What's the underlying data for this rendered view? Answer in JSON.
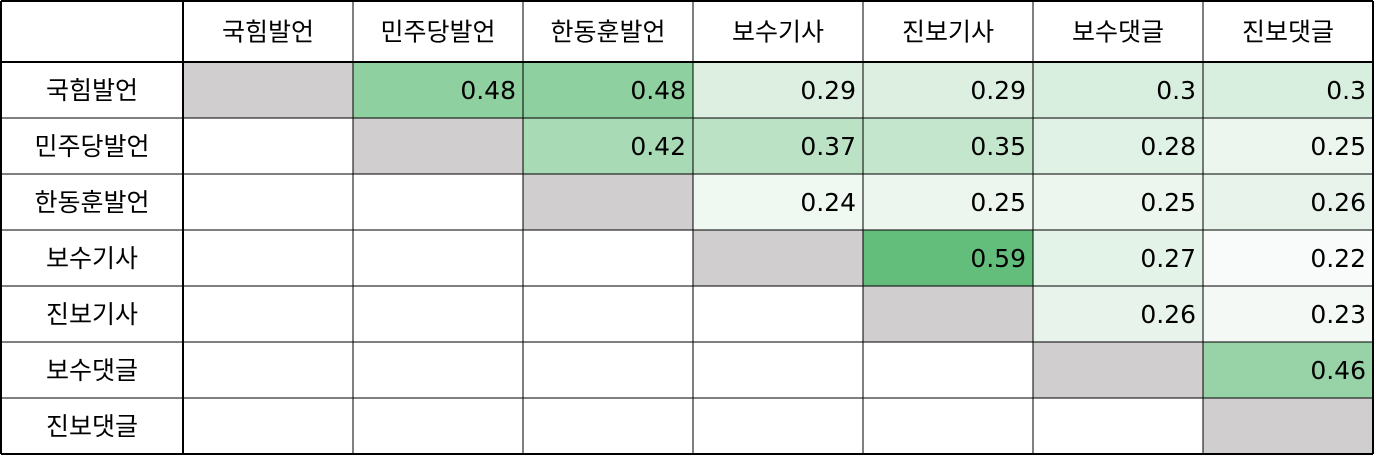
{
  "chart_data": {
    "type": "heatmap",
    "columns": [
      "국힘발언",
      "민주당발언",
      "한동훈발언",
      "보수기사",
      "진보기사",
      "보수댓글",
      "진보댓글"
    ],
    "rows": [
      "국힘발언",
      "민주당발언",
      "한동훈발언",
      "보수기사",
      "진보기사",
      "보수댓글",
      "진보댓글"
    ],
    "values": [
      [
        null,
        0.48,
        0.48,
        0.29,
        0.29,
        0.3,
        0.3
      ],
      [
        null,
        null,
        0.42,
        0.37,
        0.35,
        0.28,
        0.25
      ],
      [
        null,
        null,
        null,
        0.24,
        0.25,
        0.25,
        0.26
      ],
      [
        null,
        null,
        null,
        null,
        0.59,
        0.27,
        0.22
      ],
      [
        null,
        null,
        null,
        null,
        null,
        0.26,
        0.23
      ],
      [
        null,
        null,
        null,
        null,
        null,
        null,
        0.46
      ],
      [
        null,
        null,
        null,
        null,
        null,
        null,
        null
      ]
    ],
    "value_labels": [
      [
        "",
        "0.48",
        "0.48",
        "0.29",
        "0.29",
        "0.3",
        "0.3"
      ],
      [
        "",
        "",
        "0.42",
        "0.37",
        "0.35",
        "0.28",
        "0.25"
      ],
      [
        "",
        "",
        "",
        "0.24",
        "0.25",
        "0.25",
        "0.26"
      ],
      [
        "",
        "",
        "",
        "",
        "0.59",
        "0.27",
        "0.22"
      ],
      [
        "",
        "",
        "",
        "",
        "",
        "0.26",
        "0.23"
      ],
      [
        "",
        "",
        "",
        "",
        "",
        "",
        "0.46"
      ],
      [
        "",
        "",
        "",
        "",
        "",
        "",
        ""
      ]
    ],
    "color_scale": {
      "min": 0.22,
      "max": 0.59,
      "low_color": "#f8fbf9",
      "high_color": "#63be7b"
    },
    "diagonal_color": "#d0cece",
    "empty_color": "#ffffff",
    "grid_color": "#000000",
    "title": "",
    "xlabel": "",
    "ylabel": ""
  }
}
